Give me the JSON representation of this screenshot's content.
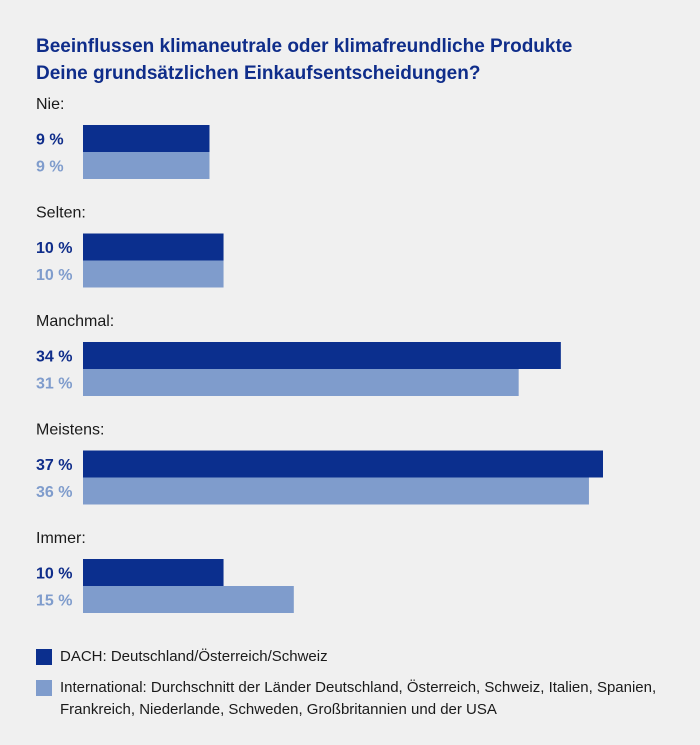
{
  "chart_data": {
    "type": "bar",
    "orientation": "horizontal",
    "title_lines": [
      "Beeinflussen klimaneutrale oder klimafreundliche Produkte",
      "Deine grundsätzlichen Einkaufsentscheidungen?"
    ],
    "categories": [
      "Nie:",
      "Selten:",
      "Manchmal:",
      "Meistens:",
      "Immer:"
    ],
    "series": [
      {
        "name": "DACH: Deutschland/Österreich/Schweiz",
        "values": [
          9,
          10,
          34,
          37,
          10
        ],
        "labels": [
          "9 %",
          "10 %",
          "34 %",
          "37 %",
          "10 %"
        ],
        "color": "#0b2f8e",
        "label_color": "#0f2d8a"
      },
      {
        "name": "International: Durchschnitt der Länder Deutschland, Österreich, Schweiz, Italien, Spanien, Frankreich, Niederlande, Schweden, Großbritannien und der USA",
        "values": [
          9,
          10,
          31,
          36,
          15
        ],
        "labels": [
          "9 %",
          "10 %",
          "31 %",
          "36 %",
          "15 %"
        ],
        "color": "#7f9ccc",
        "label_color": "#7f9ccc"
      }
    ],
    "xlim": [
      0,
      37
    ],
    "grid": false,
    "legend_position": "bottom"
  }
}
